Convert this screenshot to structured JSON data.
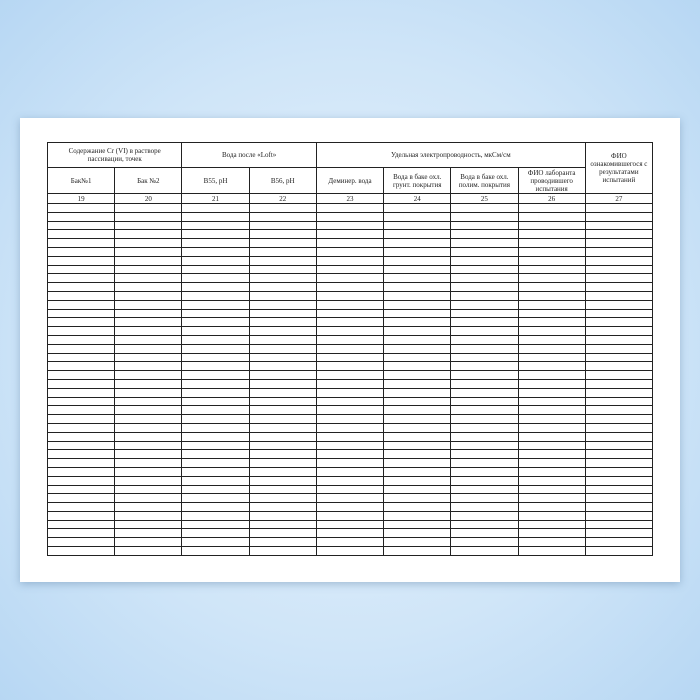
{
  "table": {
    "group_headers": [
      "Содержание Cr (VI) в растворе пассивации, точек",
      "Вода после «Loft»",
      "Удельная электропроводность, мкСм/см",
      "ФИО ознакомившегося с результатами испытаний"
    ],
    "sub_headers": [
      "Бак№1",
      "Бак №2",
      "В55, pH",
      "В56, pH",
      "Деминер. вода",
      "Вода в баке охл. грунт. покрытия",
      "Вода в баке охл. полим. покрытия",
      "ФИО лаборанта проводившего испытания"
    ],
    "column_numbers": [
      "19",
      "20",
      "21",
      "22",
      "23",
      "24",
      "25",
      "26",
      "27"
    ],
    "empty_rows": 40
  }
}
